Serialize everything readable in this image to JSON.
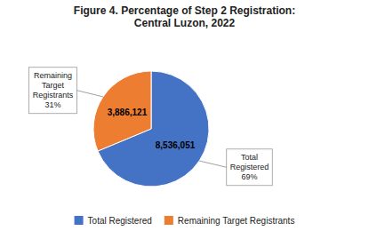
{
  "chart_data": {
    "type": "pie",
    "title": "Figure 4. Percentage of Step 2 Registration:\nCentral Luzon, 2022",
    "categories": [
      "Total Registered",
      "Remaining Target Registrants"
    ],
    "values": [
      8536051,
      3886121
    ],
    "value_labels": [
      "8,536,051",
      "3,886,121"
    ],
    "colors": [
      "#4472C4",
      "#ED7D31"
    ],
    "data_labels": true,
    "legend": "bottom",
    "annotations": [
      "Total\nRegistered\n69%",
      "Remaining\nTarget\nRegistrants\n31%"
    ]
  }
}
